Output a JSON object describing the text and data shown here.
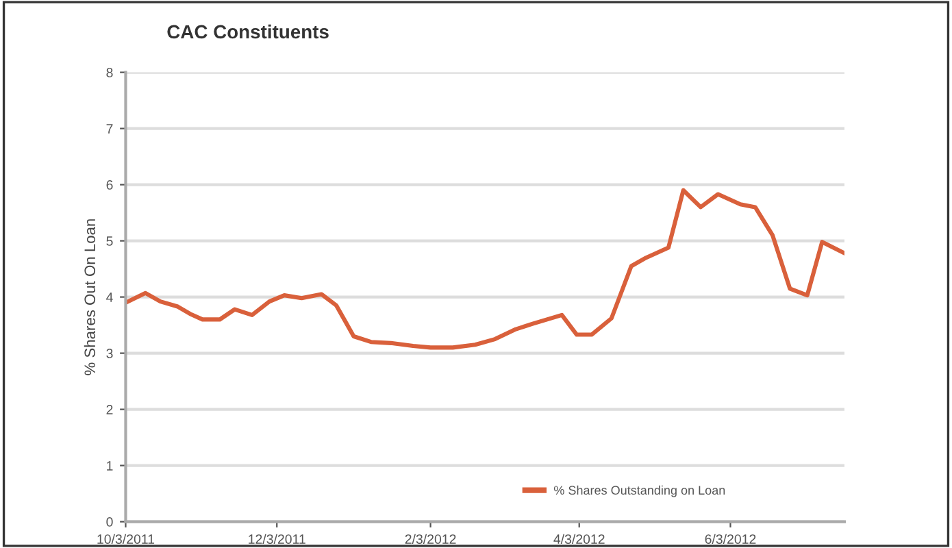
{
  "chart_data": {
    "type": "line",
    "title": "CAC Constituents",
    "ylabel": "% Shares Out On Loan",
    "x": [
      "2011-10-03",
      "2011-10-11",
      "2011-10-17",
      "2011-10-24",
      "2011-10-29",
      "2011-11-03",
      "2011-11-10",
      "2011-11-16",
      "2011-11-23",
      "2011-11-30",
      "2011-12-06",
      "2011-12-13",
      "2011-12-21",
      "2011-12-27",
      "2012-01-03",
      "2012-01-10",
      "2012-01-18",
      "2012-01-27",
      "2012-02-03",
      "2012-02-12",
      "2012-02-21",
      "2012-02-29",
      "2012-03-08",
      "2012-03-15",
      "2012-03-21",
      "2012-03-27",
      "2012-04-02",
      "2012-04-08",
      "2012-04-16",
      "2012-04-24",
      "2012-04-30",
      "2012-05-09",
      "2012-05-15",
      "2012-05-22",
      "2012-05-29",
      "2012-06-07",
      "2012-06-13",
      "2012-06-20",
      "2012-06-27",
      "2012-07-04",
      "2012-07-10",
      "2012-07-19"
    ],
    "series": [
      {
        "name": "% Shares Outstanding on Loan",
        "color": "#d9603b",
        "values": [
          3.9,
          4.07,
          3.92,
          3.83,
          3.7,
          3.6,
          3.6,
          3.78,
          3.68,
          3.92,
          4.03,
          3.98,
          4.05,
          3.85,
          3.3,
          3.2,
          3.18,
          3.13,
          3.1,
          3.1,
          3.15,
          3.25,
          3.42,
          3.52,
          3.6,
          3.68,
          3.33,
          3.33,
          3.62,
          4.55,
          4.7,
          4.88,
          5.9,
          5.6,
          5.83,
          5.65,
          5.6,
          5.1,
          4.15,
          4.03,
          4.98,
          4.78
        ]
      }
    ],
    "xlim": [
      "2011-10-03",
      "2012-07-19"
    ],
    "xticks": [
      {
        "value": "2011-10-03",
        "label": "10/3/2011"
      },
      {
        "value": "2011-12-03",
        "label": "12/3/2011"
      },
      {
        "value": "2012-02-03",
        "label": "2/3/2012"
      },
      {
        "value": "2012-04-03",
        "label": "4/3/2012"
      },
      {
        "value": "2012-06-03",
        "label": "6/3/2012"
      }
    ],
    "ylim": [
      0,
      8
    ],
    "yticks": [
      0,
      1,
      2,
      3,
      4,
      5,
      6,
      7,
      8
    ],
    "grid": "y",
    "legend": "bottom",
    "marker": "none",
    "line_style": "solid"
  }
}
